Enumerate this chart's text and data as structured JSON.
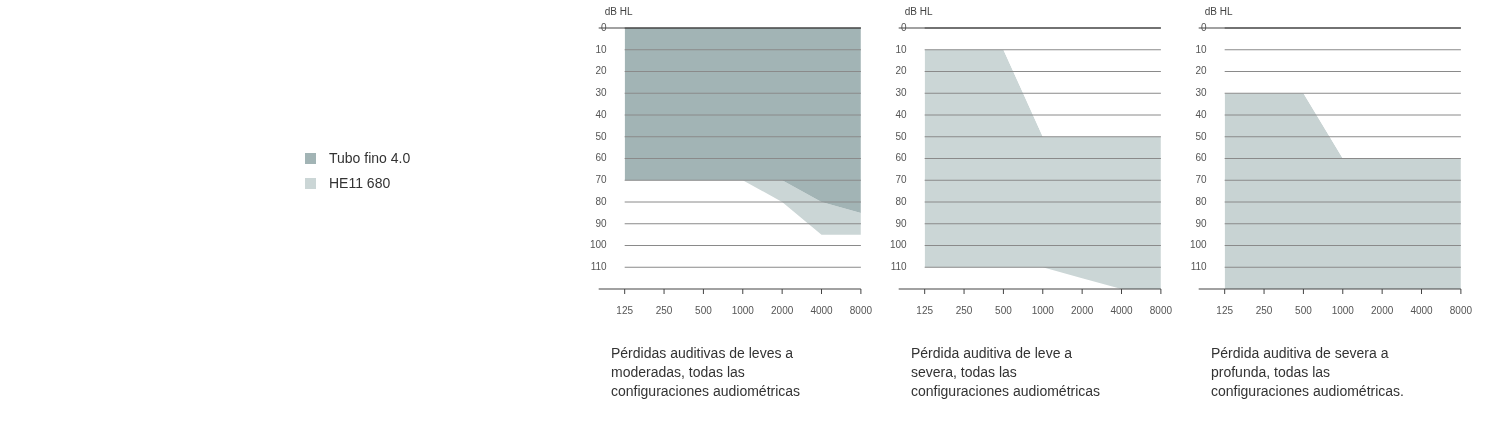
{
  "chart_data": [
    {
      "type": "area",
      "ylabel": "dB HL",
      "categories": [
        "125",
        "250",
        "500",
        "1000",
        "2000",
        "4000",
        "8000"
      ],
      "series": [
        {
          "name": "Tubo fino 4.0",
          "color": "#a2b4b5",
          "values": [
            70,
            70,
            70,
            70,
            70,
            80,
            85
          ]
        },
        {
          "name": "HE11 680",
          "color": "#cbd6d6",
          "values": [
            null,
            null,
            null,
            0,
            10,
            15,
            10
          ]
        }
      ],
      "stacked": true,
      "ylim": [
        120,
        0
      ],
      "yticks": [
        0,
        10,
        20,
        30,
        40,
        50,
        60,
        70,
        80,
        90,
        100,
        110
      ],
      "grid": "y",
      "legend": "left",
      "annotations": [
        "Pérdidas auditivas de leves a moderadas, todas las configuraciones audiométricas"
      ]
    },
    {
      "type": "area",
      "ylabel": "dB HL",
      "categories": [
        "125",
        "250",
        "500",
        "1000",
        "2000",
        "4000",
        "8000"
      ],
      "series": [
        {
          "color": "#ffffff",
          "values": [
            10,
            10,
            10,
            50,
            50,
            50,
            50
          ]
        },
        {
          "color": "#cbd6d6",
          "values": [
            100,
            100,
            100,
            60,
            65,
            70,
            70
          ]
        }
      ],
      "stacked": true,
      "ylim": [
        120,
        0
      ],
      "yticks": [
        0,
        10,
        20,
        30,
        40,
        50,
        60,
        70,
        80,
        90,
        100,
        110
      ],
      "grid": "y",
      "annotations": [
        "Pérdida auditiva de leve a severa, todas las configuraciones audiométricas"
      ]
    },
    {
      "type": "area",
      "ylabel": "dB HL",
      "categories": [
        "125",
        "250",
        "500",
        "1000",
        "2000",
        "4000",
        "8000"
      ],
      "series": [
        {
          "color": "#ffffff",
          "values": [
            30,
            30,
            30,
            60,
            60,
            60,
            60
          ]
        },
        {
          "color": "#c8d3d3",
          "values": [
            90,
            90,
            90,
            60,
            60,
            60,
            60
          ]
        }
      ],
      "stacked": true,
      "ylim": [
        120,
        0
      ],
      "yticks": [
        0,
        10,
        20,
        30,
        40,
        50,
        60,
        70,
        80,
        90,
        100,
        110
      ],
      "grid": "y",
      "annotations": [
        "Pérdida auditiva de severa a profunda, todas las configuraciones audiométricas."
      ]
    }
  ]
}
